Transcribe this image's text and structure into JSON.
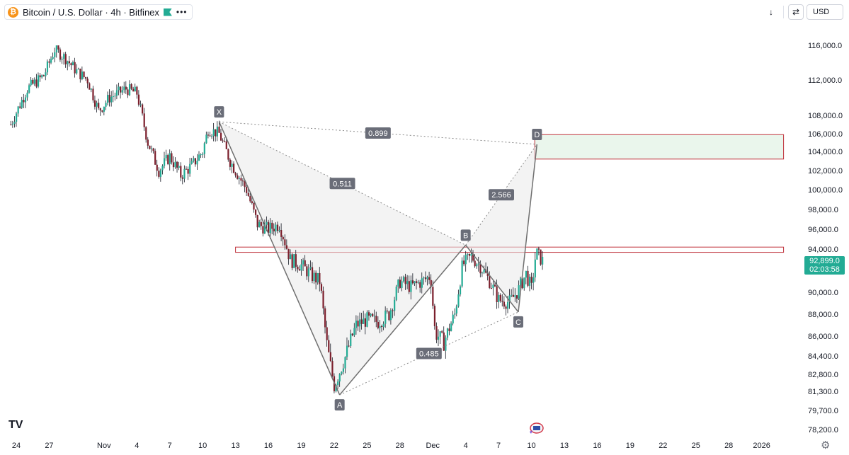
{
  "header": {
    "symbol_title": "Bitcoin / U.S. Dollar · 4h · Bitfinex",
    "coin_glyph": "₿",
    "more_glyph": "•••",
    "currency": "USD",
    "download_glyph": "↓",
    "toggle_glyph": "⇄"
  },
  "price_tag": {
    "price": "92,899.0",
    "countdown": "02:03:58"
  },
  "footer": {
    "logo_text": "TV",
    "settings_glyph": "⚙"
  },
  "colors": {
    "up": "#22ab94",
    "down": "#7b1f2c",
    "zone_border": "#c0323c",
    "zone_fill": "#eaf6ec",
    "pattern_fill": "#e9e9e9",
    "label_bg": "#6a6d78"
  },
  "chart_data": {
    "type": "candlestick",
    "title": "Bitcoin / U.S. Dollar · 4h · Bitfinex",
    "ylim": [
      77000,
      118500
    ],
    "y_ticks": [
      116000,
      112000,
      108000,
      106000,
      104000,
      102000,
      100000,
      98000,
      96000,
      94000,
      90000,
      88000,
      86000,
      84400,
      82800,
      81300,
      79700,
      78200
    ],
    "y_tick_labels": [
      "116,000.0",
      "112,000.0",
      "108,000.0",
      "106,000.0",
      "104,000.0",
      "102,000.0",
      "100,000.0",
      "98,000.0",
      "96,000.0",
      "94,000.0",
      "90,000.0",
      "88,000.0",
      "86,000.0",
      "84,400.0",
      "82,800.0",
      "81,300.0",
      "79,700.0",
      "78,200.0"
    ],
    "x_range_days": [
      0,
      70
    ],
    "x_ticks": [
      {
        "label": "24",
        "day": 0
      },
      {
        "label": "27",
        "day": 3
      },
      {
        "label": "Nov",
        "day": 8
      },
      {
        "label": "4",
        "day": 11
      },
      {
        "label": "7",
        "day": 14
      },
      {
        "label": "10",
        "day": 17
      },
      {
        "label": "13",
        "day": 20
      },
      {
        "label": "16",
        "day": 23
      },
      {
        "label": "19",
        "day": 26
      },
      {
        "label": "22",
        "day": 29
      },
      {
        "label": "25",
        "day": 32
      },
      {
        "label": "28",
        "day": 35
      },
      {
        "label": "Dec",
        "day": 38
      },
      {
        "label": "4",
        "day": 41
      },
      {
        "label": "7",
        "day": 44
      },
      {
        "label": "10",
        "day": 47
      },
      {
        "label": "13",
        "day": 50
      },
      {
        "label": "16",
        "day": 53
      },
      {
        "label": "19",
        "day": 56
      },
      {
        "label": "22",
        "day": 59
      },
      {
        "label": "25",
        "day": 62
      },
      {
        "label": "28",
        "day": 65
      },
      {
        "label": "2026",
        "day": 68
      }
    ],
    "price_path": [
      [
        -0.5,
        107000
      ],
      [
        1.0,
        111000
      ],
      [
        2.5,
        112500
      ],
      [
        3.5,
        115500
      ],
      [
        4.5,
        114500
      ],
      [
        5.5,
        113000
      ],
      [
        6.5,
        112000
      ],
      [
        7.5,
        108500
      ],
      [
        8.5,
        110000
      ],
      [
        10.0,
        111000
      ],
      [
        11.0,
        110500
      ],
      [
        12.0,
        105000
      ],
      [
        13.0,
        102000
      ],
      [
        14.0,
        103500
      ],
      [
        15.0,
        101500
      ],
      [
        16.0,
        102500
      ],
      [
        17.0,
        104000
      ],
      [
        17.5,
        106500
      ],
      [
        18.5,
        106000
      ],
      [
        19.5,
        103000
      ],
      [
        21.0,
        100000
      ],
      [
        22.0,
        96500
      ],
      [
        23.0,
        96000
      ],
      [
        24.0,
        96500
      ],
      [
        25.0,
        93000
      ],
      [
        26.0,
        92500
      ],
      [
        27.0,
        91500
      ],
      [
        27.7,
        91000
      ],
      [
        28.3,
        85500
      ],
      [
        29.0,
        81800
      ],
      [
        30.0,
        84300
      ],
      [
        31.0,
        87000
      ],
      [
        32.0,
        87500
      ],
      [
        33.0,
        87300
      ],
      [
        34.0,
        88000
      ],
      [
        35.0,
        91000
      ],
      [
        36.0,
        90500
      ],
      [
        37.0,
        91000
      ],
      [
        37.8,
        91500
      ],
      [
        38.2,
        86300
      ],
      [
        39.0,
        85500
      ],
      [
        40.0,
        88000
      ],
      [
        40.7,
        92500
      ],
      [
        41.5,
        93300
      ],
      [
        42.3,
        92500
      ],
      [
        43.2,
        91000
      ],
      [
        44.0,
        89300
      ],
      [
        45.0,
        89100
      ],
      [
        45.8,
        90200
      ],
      [
        46.5,
        91700
      ],
      [
        47.0,
        90300
      ],
      [
        47.4,
        93700
      ],
      [
        48.0,
        92900
      ]
    ],
    "pattern": {
      "name": "harmonic XABCD",
      "points": [
        {
          "label": "X",
          "day": 18.5,
          "price": 107300
        },
        {
          "label": "A",
          "day": 29.5,
          "price": 81000
        },
        {
          "label": "B",
          "day": 41.0,
          "price": 94400
        },
        {
          "label": "C",
          "day": 45.8,
          "price": 88200
        },
        {
          "label": "D",
          "day": 47.5,
          "price": 104800
        }
      ],
      "ratios": [
        {
          "value": "0.899",
          "from": "X",
          "to": "D"
        },
        {
          "value": "0.511",
          "from": "X",
          "to": "B"
        },
        {
          "value": "2.566",
          "from": "B",
          "to": "D"
        },
        {
          "value": "0.485",
          "from": "A",
          "to": "C"
        }
      ]
    },
    "zones": [
      {
        "name": "d-zone",
        "day_start": 47.3,
        "day_end": 70,
        "price_top": 105900,
        "price_bottom": 103200
      },
      {
        "name": "resistance",
        "day_start": 20.0,
        "day_end": 70,
        "price_top": 94200,
        "price_bottom": 93700
      }
    ],
    "last_price": 92899.0
  }
}
